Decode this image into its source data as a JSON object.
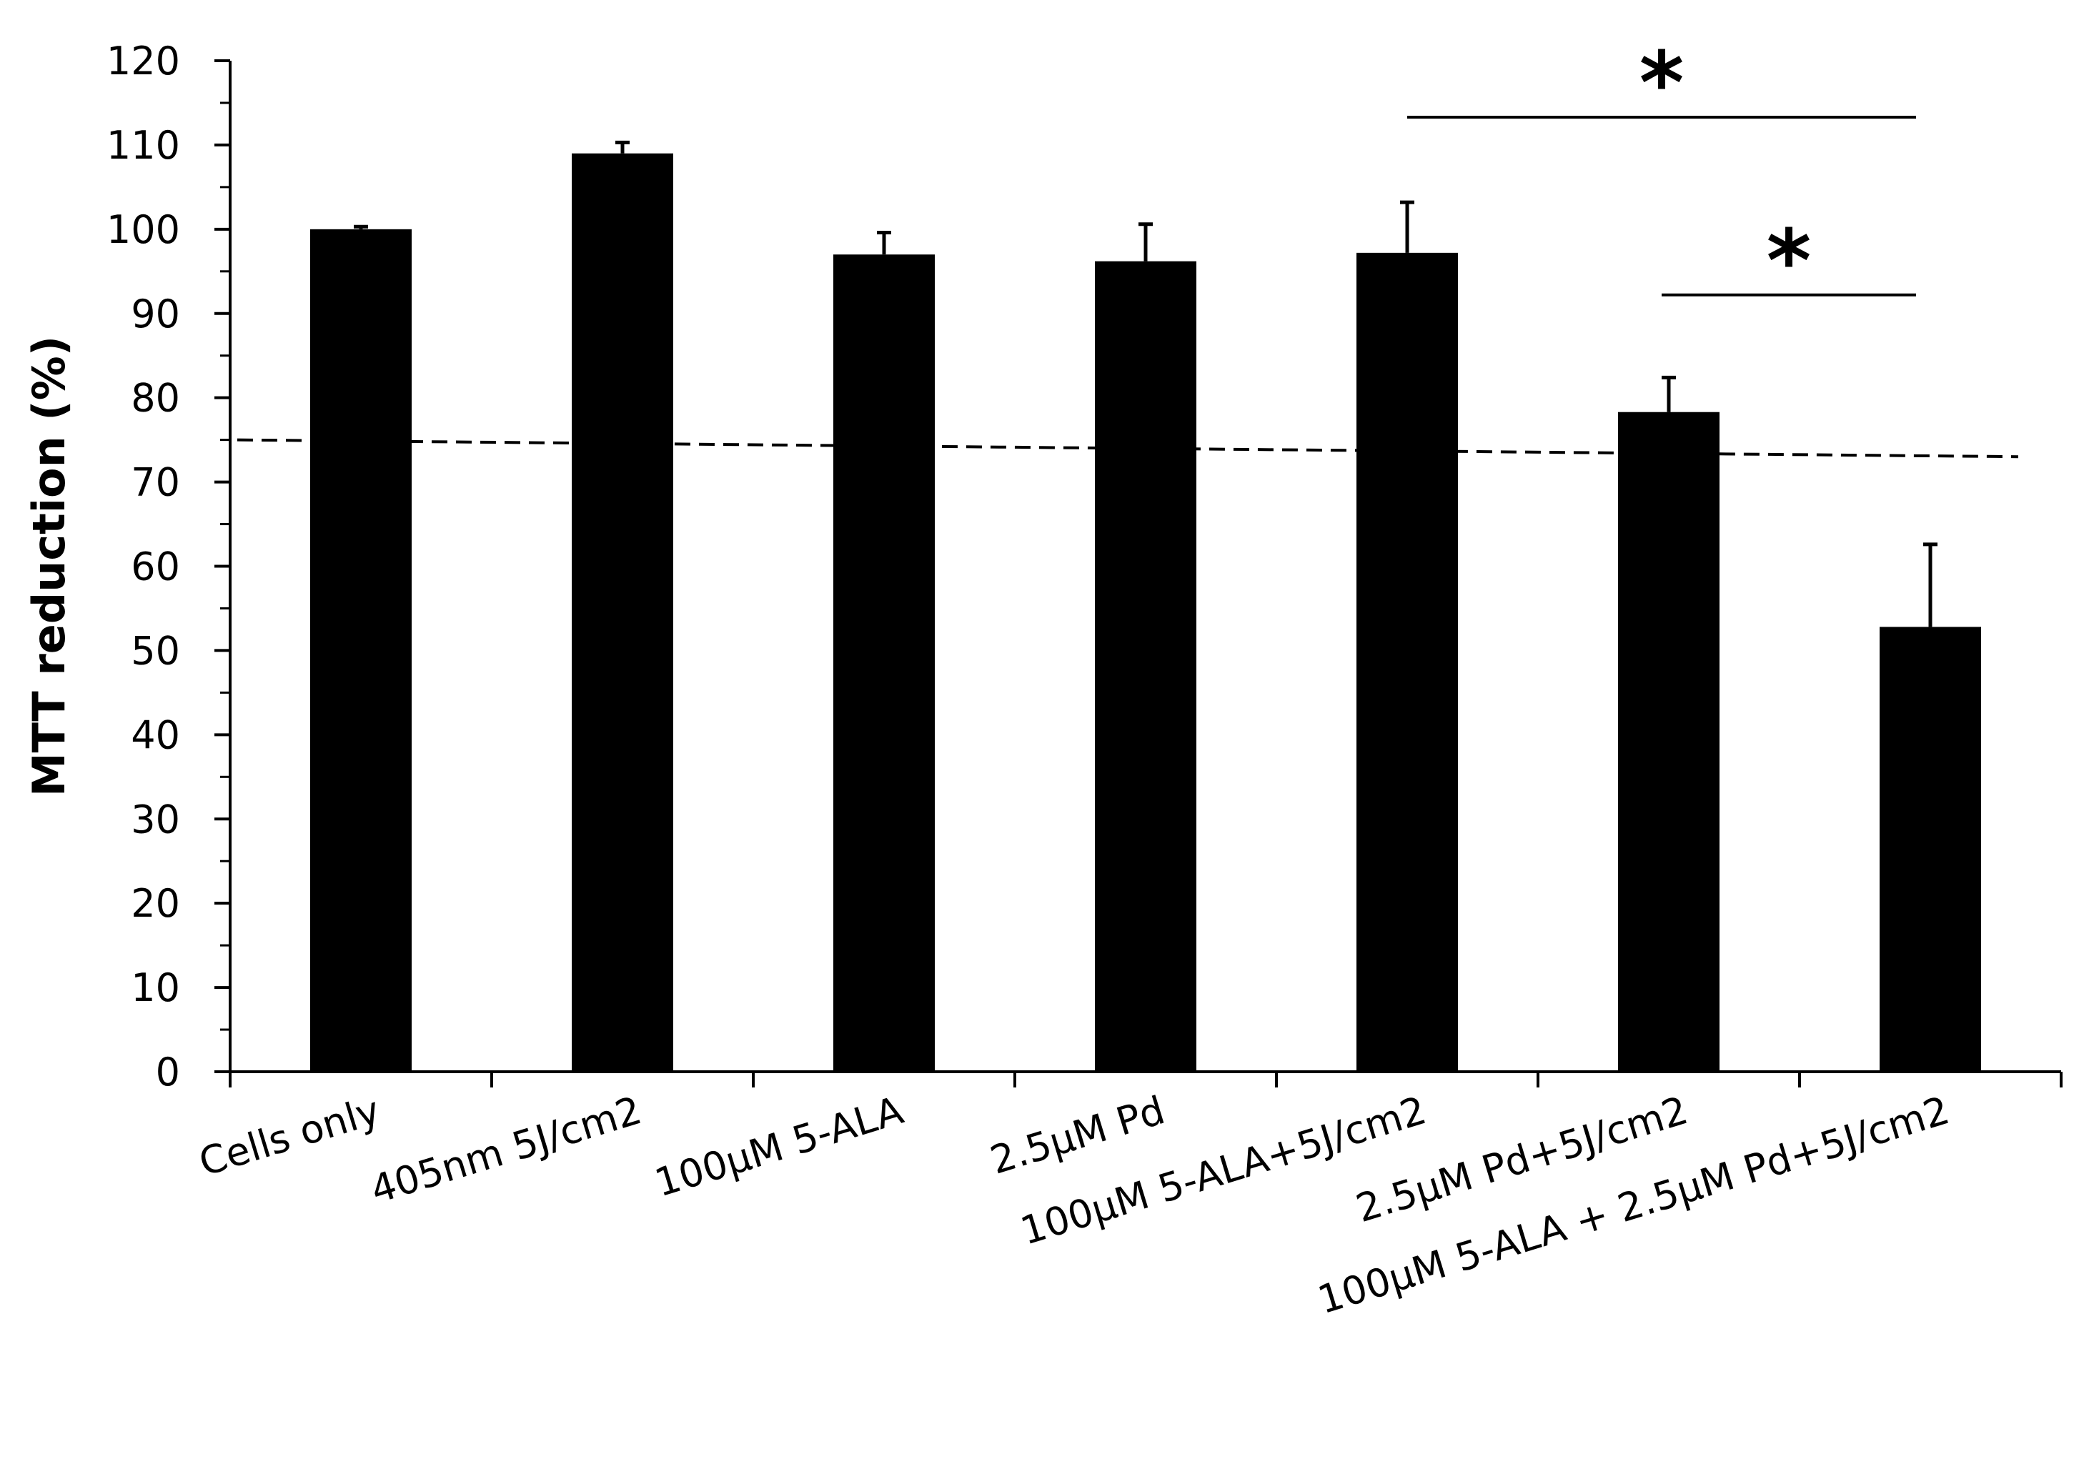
{
  "chart_data": {
    "type": "bar",
    "title": "",
    "xlabel": "",
    "ylabel": "MTT reduction (%)",
    "ylim": [
      0,
      120
    ],
    "yticks": [
      0,
      10,
      20,
      30,
      40,
      50,
      60,
      70,
      80,
      90,
      100,
      110,
      120
    ],
    "grid": false,
    "legend": "none",
    "bar_color": "#000000",
    "categories": [
      "Cells only",
      "405nm 5J/cm2",
      "100µM 5-ALA",
      "2.5µM Pd",
      "100µM 5-ALA+5J/cm2",
      "2.5µM Pd+5J/cm2",
      "100µM 5-ALA + 2.5µM Pd+5J/cm2"
    ],
    "values": [
      100,
      109,
      97,
      96.2,
      97.2,
      78.3,
      52.8
    ],
    "error_plus": [
      0.3,
      1.3,
      2.6,
      4.4,
      6.0,
      4.1,
      9.8
    ],
    "reference_line": {
      "style": "dashed",
      "y_start": 75,
      "y_end": 73
    },
    "significance": [
      {
        "from_category": 4,
        "to_category": 6,
        "y": 113.3,
        "label": "*"
      },
      {
        "from_category": 5,
        "to_category": 6,
        "y": 92.2,
        "label": "*"
      }
    ]
  }
}
